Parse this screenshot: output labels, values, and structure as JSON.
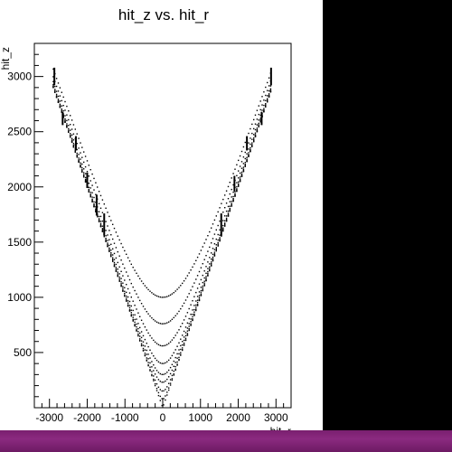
{
  "chart_data": {
    "type": "scatter",
    "title": "hit_z vs. hit_r",
    "xlabel": "hit_r",
    "ylabel": "hit_z",
    "xlim": [
      -3400,
      3400
    ],
    "ylim": [
      0,
      3300
    ],
    "x_ticks": [
      -3000,
      -2000,
      -1000,
      0,
      1000,
      2000,
      3000
    ],
    "y_ticks": [
      500,
      1000,
      1500,
      2000,
      2500,
      3000
    ],
    "grid": false,
    "legend": "none",
    "series": [
      {
        "values": [],
        "marker_color": "#000000",
        "curves": [
          {
            "z_at_zero": 0,
            "slope": 1.0
          },
          {
            "z_at_zero": 80,
            "slope": 1.0
          },
          {
            "z_at_zero": 150,
            "slope": 1.0
          },
          {
            "z_at_zero": 230,
            "slope": 1.0
          },
          {
            "z_at_zero": 300,
            "slope": 1.0
          },
          {
            "z_at_zero": 400,
            "slope": 1.0
          },
          {
            "z_at_zero": 560,
            "slope": 1.0
          },
          {
            "z_at_zero": 760,
            "slope": 1.0
          },
          {
            "z_at_zero": 1000,
            "slope": 1.0
          }
        ],
        "vertical_segments": [
          {
            "r": -2870,
            "z0": 2920,
            "z1": 3080
          },
          {
            "r": 2870,
            "z0": 2920,
            "z1": 3080
          },
          {
            "r": -2650,
            "z0": 2560,
            "z1": 2680
          },
          {
            "r": 2620,
            "z0": 2560,
            "z1": 2680
          },
          {
            "r": -2300,
            "z0": 2330,
            "z1": 2460
          },
          {
            "r": 2230,
            "z0": 2330,
            "z1": 2460
          },
          {
            "r": -2000,
            "z0": 1990,
            "z1": 2130
          },
          {
            "r": 1900,
            "z0": 1960,
            "z1": 2100
          },
          {
            "r": -1750,
            "z0": 1740,
            "z1": 1930
          },
          {
            "r": 1550,
            "z0": 1560,
            "z1": 1760
          },
          {
            "r": -1550,
            "z0": 1560,
            "z1": 1760
          }
        ]
      }
    ]
  },
  "axes": {
    "x_tick_labels": [
      "-3000",
      "-2000",
      "-1000",
      "0",
      "1000",
      "2000",
      "3000"
    ],
    "y_tick_labels": [
      "500",
      "1000",
      "1500",
      "2000",
      "2500",
      "3000"
    ]
  }
}
